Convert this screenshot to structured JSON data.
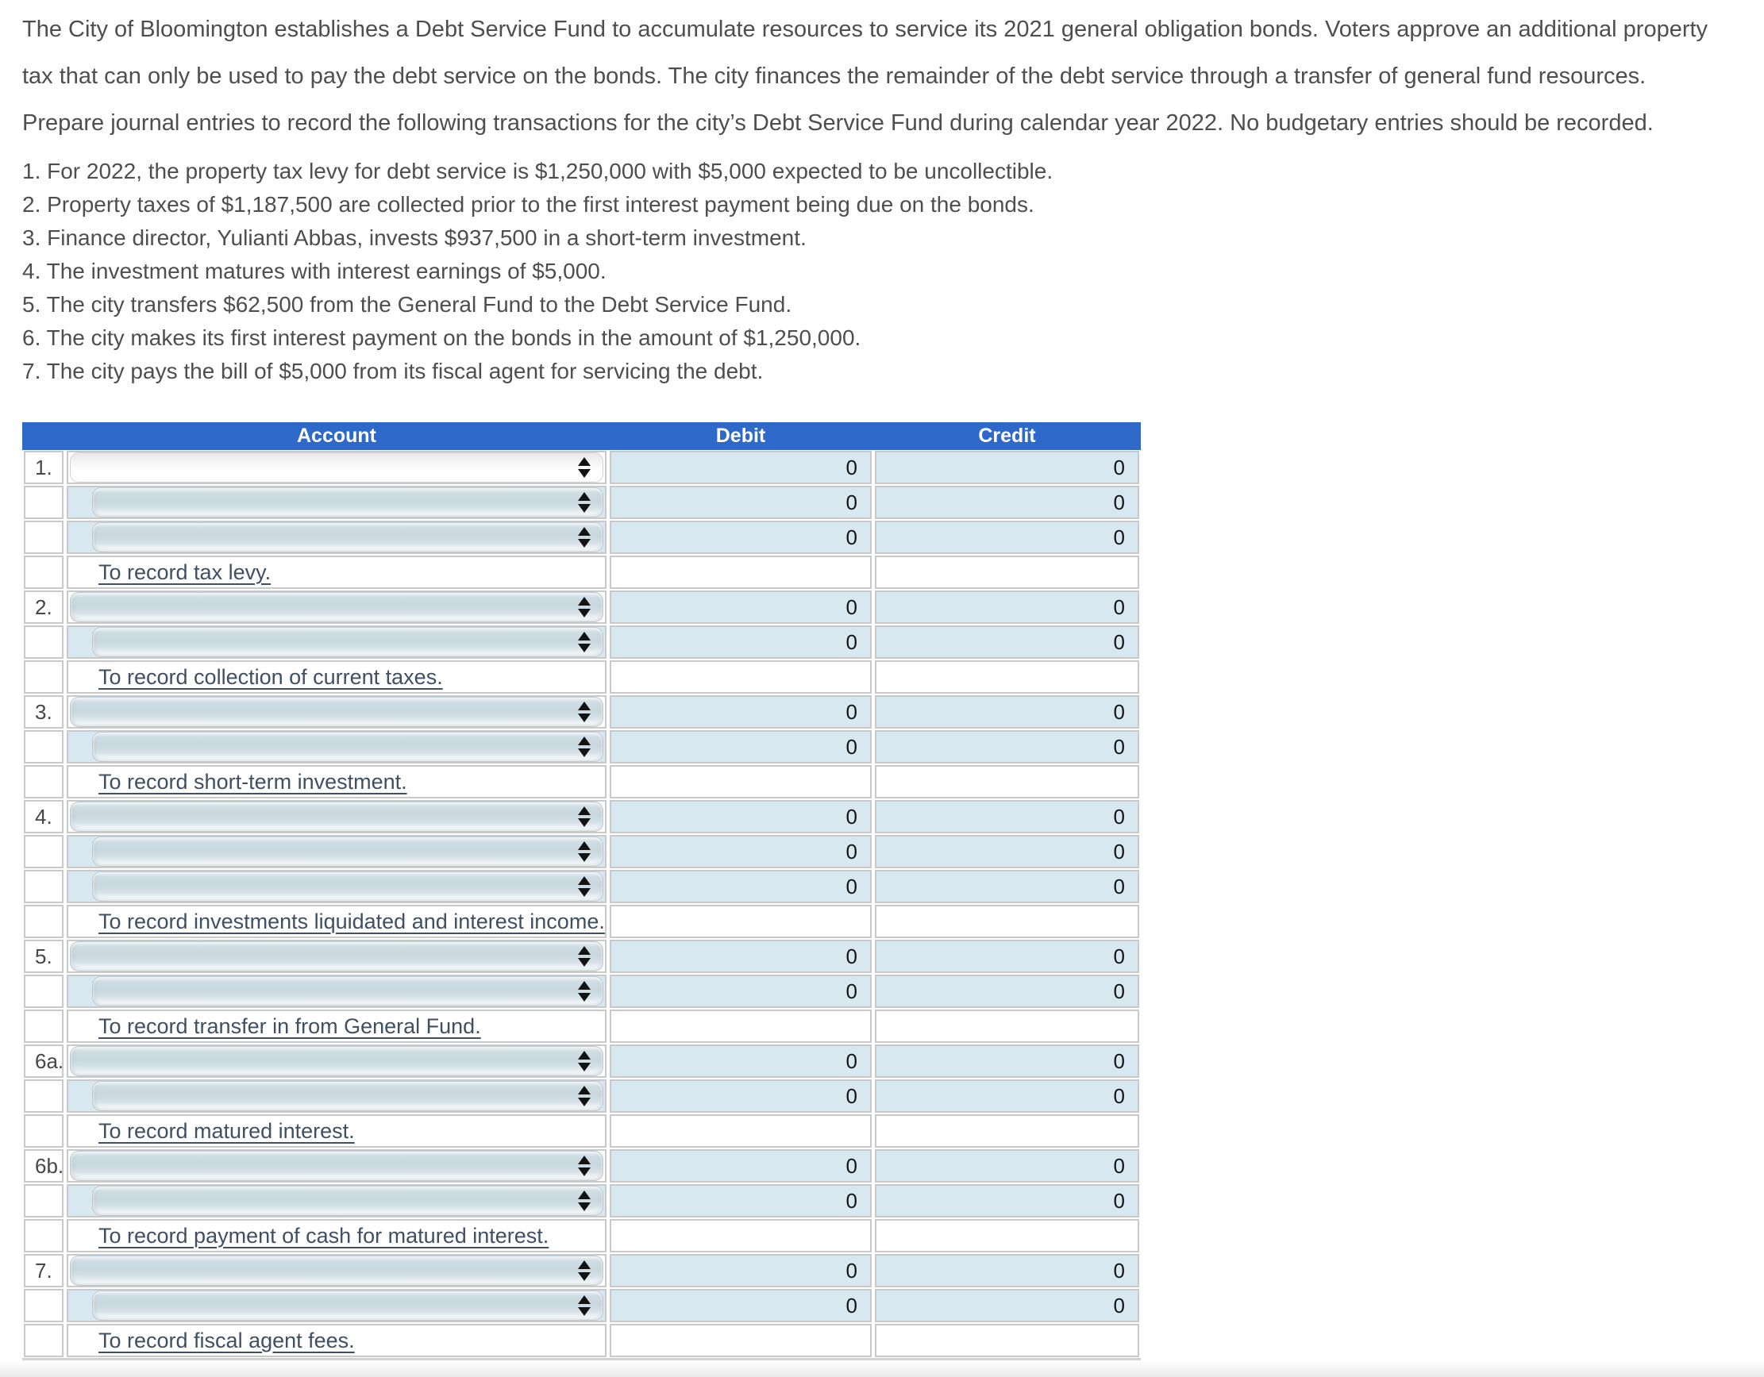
{
  "intro": [
    "The City of Bloomington establishes a Debt Service Fund to accumulate resources to service its 2021 general obligation bonds. Voters approve an additional property tax that can only be used to pay the debt service on the bonds. The city finances the remainder of the debt service through a transfer of general fund resources.",
    "Prepare journal entries to record the following transactions for the city’s Debt Service Fund during calendar year 2022. No budgetary entries should be recorded."
  ],
  "transactions": [
    "1. For 2022, the property tax levy for debt service is $1,250,000 with $5,000 expected to be uncollectible.",
    "2. Property taxes of $1,187,500 are collected prior to the first interest payment being due on the bonds.",
    "3. Finance director, Yulianti Abbas, invests $937,500 in a short-term investment.",
    "4. The investment matures with interest earnings of $5,000.",
    "5. The city transfers $62,500 from the General Fund to the Debt Service Fund.",
    "6. The city makes its first interest payment on the bonds in the amount of $1,250,000.",
    "7. The city pays the bill of $5,000 from its fiscal agent for servicing the debt."
  ],
  "table": {
    "headers": {
      "account": "Account",
      "debit": "Debit",
      "credit": "Credit"
    },
    "entries": [
      {
        "label": "1.",
        "note": "To record tax levy.",
        "lines": [
          {
            "indent": false,
            "variant": "light",
            "debit": "0",
            "credit": "0"
          },
          {
            "indent": true,
            "debit": "0",
            "credit": "0"
          },
          {
            "indent": true,
            "debit": "0",
            "credit": "0"
          }
        ]
      },
      {
        "label": "2.",
        "note": "To record collection of current taxes.",
        "lines": [
          {
            "indent": false,
            "debit": "0",
            "credit": "0"
          },
          {
            "indent": true,
            "debit": "0",
            "credit": "0"
          }
        ]
      },
      {
        "label": "3.",
        "note": "To record short-term investment.",
        "lines": [
          {
            "indent": false,
            "debit": "0",
            "credit": "0"
          },
          {
            "indent": true,
            "debit": "0",
            "credit": "0"
          }
        ]
      },
      {
        "label": "4.",
        "note": "To record investments liquidated and interest income.",
        "lines": [
          {
            "indent": false,
            "debit": "0",
            "credit": "0"
          },
          {
            "indent": true,
            "debit": "0",
            "credit": "0"
          },
          {
            "indent": true,
            "debit": "0",
            "credit": "0"
          }
        ]
      },
      {
        "label": "5.",
        "note": "To record transfer in from General Fund.",
        "lines": [
          {
            "indent": false,
            "debit": "0",
            "credit": "0"
          },
          {
            "indent": true,
            "debit": "0",
            "credit": "0"
          }
        ]
      },
      {
        "label": "6a.",
        "note": "To record matured interest.",
        "lines": [
          {
            "indent": false,
            "debit": "0",
            "credit": "0"
          },
          {
            "indent": true,
            "debit": "0",
            "credit": "0"
          }
        ]
      },
      {
        "label": "6b.",
        "note": "To record payment of cash for matured interest.",
        "lines": [
          {
            "indent": false,
            "debit": "0",
            "credit": "0"
          },
          {
            "indent": true,
            "debit": "0",
            "credit": "0"
          }
        ]
      },
      {
        "label": "7.",
        "note": "To record fiscal agent fees.",
        "lines": [
          {
            "indent": false,
            "debit": "0",
            "credit": "0"
          },
          {
            "indent": true,
            "debit": "0",
            "credit": "0"
          }
        ]
      }
    ]
  },
  "icons": {
    "account_dropdown": "up-down-triangles"
  },
  "colors": {
    "header_blue": "#2e68c8",
    "input_cell_blue": "#d8e8f1",
    "cell_border_gray": "#c9c9c9",
    "description_text": "#3f4f64"
  }
}
